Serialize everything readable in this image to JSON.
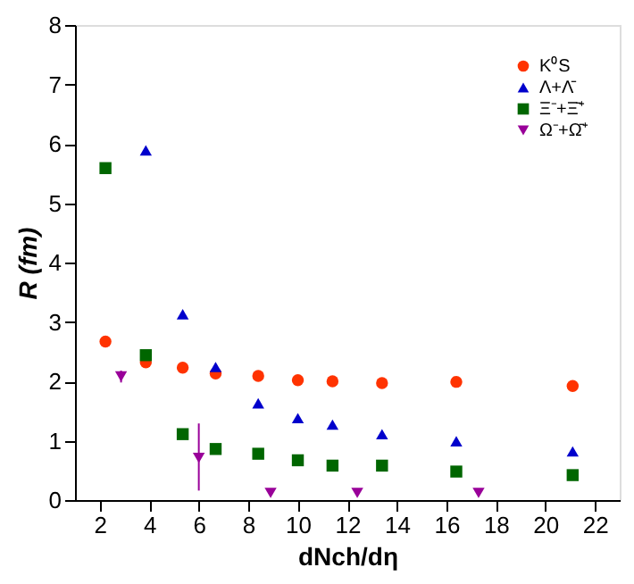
{
  "chart_data": {
    "type": "scatter",
    "xlabel": "dNch/dη",
    "ylabel": "R (fm)",
    "xlim": [
      1,
      23
    ],
    "xticks": [
      2,
      4,
      6,
      8,
      10,
      12,
      14,
      16,
      18,
      20,
      22
    ],
    "ylim": [
      0,
      8
    ],
    "yticks": [
      0,
      1,
      2,
      3,
      4,
      5,
      6,
      7,
      8
    ],
    "legend": "top right",
    "grid": false,
    "series": [
      {
        "name": "K⁰S",
        "color": "#ff3300",
        "marker": "circle",
        "x": [
          2.23,
          3.86,
          5.35,
          6.68,
          8.4,
          10.0,
          11.4,
          13.4,
          16.4,
          21.1
        ],
        "values": [
          2.67,
          2.32,
          2.23,
          2.13,
          2.09,
          2.02,
          2.0,
          1.97,
          1.99,
          1.92
        ]
      },
      {
        "name": "Λ+Λ̄",
        "color": "#0000cc",
        "marker": "triangle",
        "x": [
          3.86,
          5.35,
          6.68,
          8.4,
          10.0,
          11.4,
          13.4,
          16.4,
          21.1
        ],
        "values": [
          5.89,
          3.13,
          2.24,
          1.63,
          1.38,
          1.27,
          1.11,
          0.99,
          0.82
        ]
      },
      {
        "name": "Ξ⁻+Ξ̄⁺",
        "color": "#006600",
        "marker": "square",
        "x": [
          2.23,
          3.86,
          5.35,
          6.68,
          8.4,
          10.0,
          11.4,
          13.4,
          16.4,
          21.1
        ],
        "values": [
          5.59,
          2.44,
          1.11,
          0.86,
          0.78,
          0.67,
          0.58,
          0.58,
          0.48,
          0.42
        ]
      },
      {
        "name": "Ω⁻+Ω̄⁺",
        "color": "#990099",
        "marker": "triangle-down",
        "x": [
          2.86,
          6.0,
          8.9,
          12.4,
          17.3
        ],
        "values": [
          2.08,
          0.71,
          0.12,
          0.12,
          0.12
        ],
        "errors": [
          0.1,
          [
            0.16,
            1.29
          ],
          null,
          null,
          null
        ]
      }
    ]
  }
}
